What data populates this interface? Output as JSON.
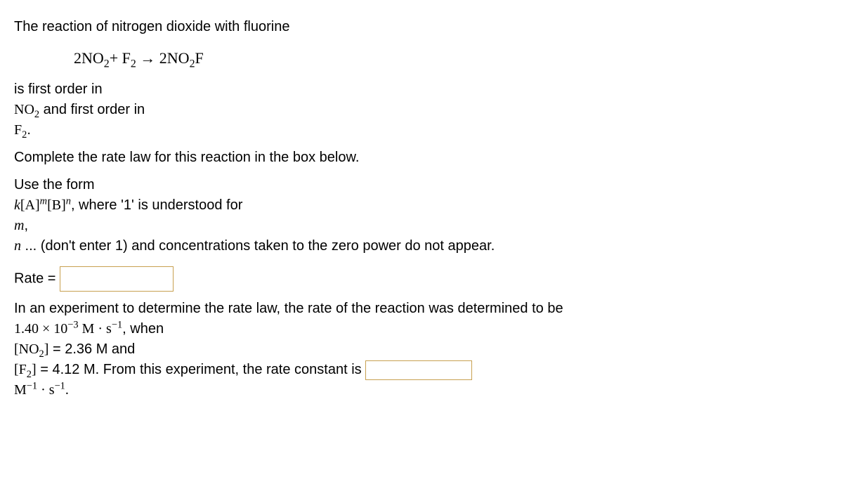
{
  "intro": "The reaction of nitrogen dioxide with fluorine",
  "order_line1": "is first order in",
  "order_line2": " and first order in",
  "complete_line": "Complete the rate law for this reaction in the box below.",
  "use_form": "Use the form",
  "where_text": ", where '1' is understood for",
  "mn_line2": " ... (don't enter 1) and concentrations taken to the zero power do not appear.",
  "rate_label": "Rate = ",
  "exp_line1": "In an experiment to determine the rate law, the rate of the reaction was determined to be",
  "rate_value": "1.40 × 10",
  "rate_exp": "−3",
  "rate_units_a": " M · s",
  "rate_units_exp": "−1",
  "when_text": ", when",
  "no2_conc": " = 2.36 M and",
  "f2_conc": " = 4.12 M. From this experiment, the rate constant is ",
  "k_units_M": "M",
  "k_units_s": " · s",
  "neg1": "−1",
  "period": ".",
  "comma": ",",
  "m_var": "m",
  "n_var": "n",
  "k_var": "k",
  "A_var": "[A]",
  "B_var": "[B]",
  "NO2": "NO",
  "F2": "F",
  "two": "2",
  "NO2F": "NO",
  "arrow": " → ",
  "plus": "+ ",
  "eq_2": "2",
  "coef2a": "2",
  "coef2b": "2",
  "F_suffix": "F",
  "bracket_NO2": "[NO",
  "bracket_F2": "[F",
  "close_bracket": "]"
}
